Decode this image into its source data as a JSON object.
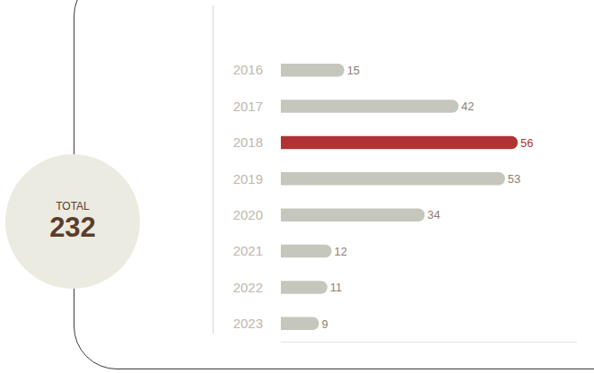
{
  "chart_data": {
    "type": "bar",
    "orientation": "horizontal",
    "categories": [
      "2016",
      "2017",
      "2018",
      "2019",
      "2020",
      "2021",
      "2022",
      "2023"
    ],
    "values": [
      15,
      42,
      56,
      53,
      34,
      12,
      11,
      9
    ],
    "colors": [
      "#c5c7bd",
      "#c5c7bd",
      "#b03232",
      "#c5c7bd",
      "#c5c7bd",
      "#c5c7bd",
      "#c5c7bd",
      "#c5c7bd"
    ],
    "xlim": [
      0,
      70
    ],
    "data_labels": true,
    "tick_labels": "y",
    "grid": false,
    "total": {
      "label": "TOTAL",
      "value": 232
    }
  }
}
